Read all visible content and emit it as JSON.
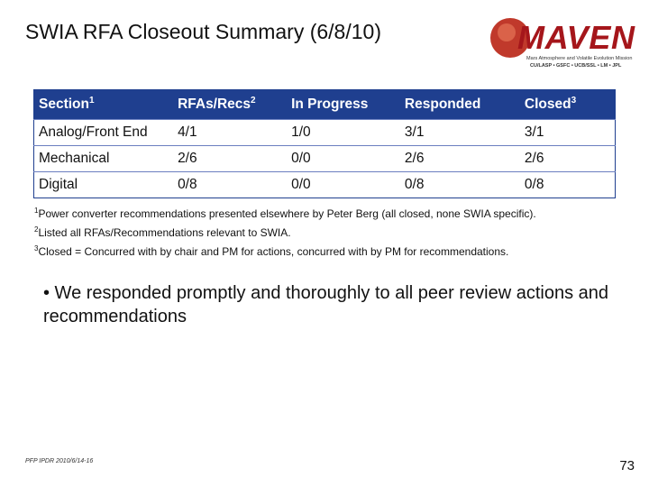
{
  "header": {
    "title": "SWIA RFA Closeout Summary (6/8/10)"
  },
  "logo": {
    "name": "MAVEN",
    "tagline": "Mars Atmosphere and Volatile Evolution Mission",
    "partners": "CU/LASP • GSFC • UCB/SSL • LM • JPL"
  },
  "table": {
    "columns": [
      {
        "text": "Section",
        "sup": "1"
      },
      {
        "text": "RFAs/Recs",
        "sup": "2"
      },
      {
        "text": "In Progress"
      },
      {
        "text": "Responded"
      },
      {
        "text": "Closed",
        "sup": "3"
      }
    ],
    "rows": [
      [
        "Analog/Front End",
        "4/1",
        "1/0",
        "3/1",
        "3/1"
      ],
      [
        "Mechanical",
        "2/6",
        "0/0",
        "2/6",
        "2/6"
      ],
      [
        "Digital",
        "0/8",
        "0/0",
        "0/8",
        "0/8"
      ]
    ]
  },
  "footnotes": [
    {
      "mark": "1",
      "text": "Power converter recommendations presented elsewhere by Peter Berg (all closed, none SWIA specific)."
    },
    {
      "mark": "2",
      "text": "Listed all RFAs/Recommendations relevant to SWIA."
    },
    {
      "mark": "3",
      "text": "Closed = Concurred with by chair and PM for actions, concurred with by PM for recommendations."
    }
  ],
  "bullet": "• We responded promptly and thoroughly to all peer review actions and recommendations",
  "footer": {
    "left": "PFP IPDR 2010/6/14-16",
    "page": "73"
  }
}
